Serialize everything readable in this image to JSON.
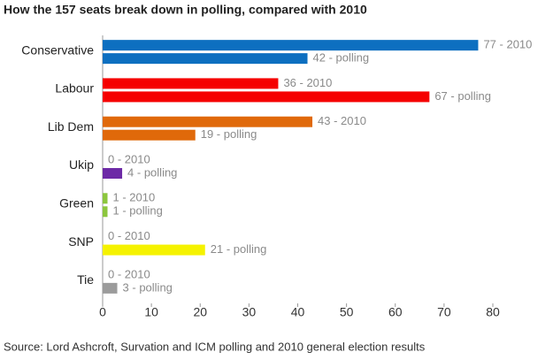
{
  "chart_data": {
    "type": "hbar",
    "title": "How the 157 seats break down in polling, compared with 2010",
    "source": "Source:  Lord Ashcroft, Survation and ICM polling and 2010 general election results",
    "categories": [
      "Conservative",
      "Labour",
      "Lib Dem",
      "Ukip",
      "Green",
      "SNP",
      "Tie"
    ],
    "colors": [
      "#0d6fc0",
      "#f50000",
      "#e0690a",
      "#6d2aa6",
      "#8cc63e",
      "#f5f200",
      "#9b9b9b"
    ],
    "series": [
      {
        "values": [
          77,
          36,
          43,
          0,
          1,
          0,
          0
        ],
        "value_labels": [
          "77 - 2010",
          "36 - 2010",
          "43 - 2010",
          "0 - 2010",
          "1 - 2010",
          "0 - 2010",
          "0 - 2010"
        ]
      },
      {
        "values": [
          42,
          67,
          19,
          4,
          1,
          21,
          3
        ],
        "value_labels": [
          "42 - polling",
          "67 - polling",
          "19 - polling",
          "4 - polling",
          "1 - polling",
          "21 - polling",
          "3 - polling"
        ]
      }
    ],
    "xlim": [
      0,
      80
    ],
    "xticks": [
      0,
      10,
      20,
      30,
      40,
      50,
      60,
      70,
      80
    ]
  }
}
